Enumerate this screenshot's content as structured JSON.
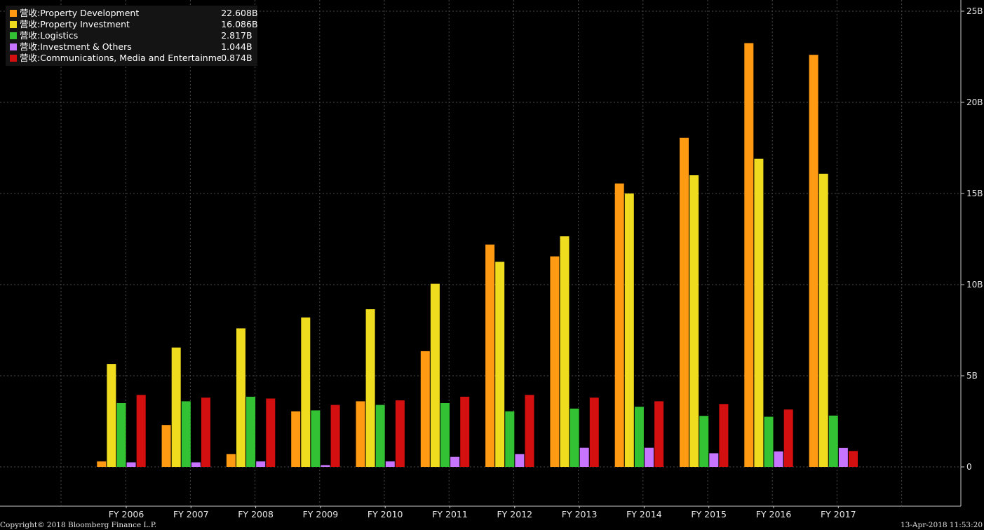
{
  "legend": [
    {
      "prefix": "营收:",
      "name": "Property Development",
      "value": "22.608B",
      "color": "#ff9a12"
    },
    {
      "prefix": "营收:",
      "name": "Property Investment",
      "value": "16.086B",
      "color": "#f0dc1e"
    },
    {
      "prefix": "营收:",
      "name": "Logistics",
      "value": "2.817B",
      "color": "#33c233"
    },
    {
      "prefix": "营收:",
      "name": "Investment & Others",
      "value": "1.044B",
      "color": "#c774ff"
    },
    {
      "prefix": "营收:",
      "name": "Communications, Media and Entertainment",
      "value": "0.874B",
      "color": "#d40f0f"
    }
  ],
  "footer": {
    "copyright": "Copyright© 2018 Bloomberg Finance L.P.",
    "timestamp": "13-Apr-2018 11:53:20"
  },
  "chart_data": {
    "type": "bar",
    "categories": [
      "FY 2006",
      "FY 2007",
      "FY 2008",
      "FY 2009",
      "FY 2010",
      "FY 2011",
      "FY 2012",
      "FY 2013",
      "FY 2014",
      "FY 2015",
      "FY 2016",
      "FY 2017"
    ],
    "series": [
      {
        "name": "营收: Property Development",
        "color": "#ff9a12",
        "values": [
          0.3,
          2.3,
          0.7,
          3.05,
          3.6,
          6.35,
          12.2,
          11.55,
          15.55,
          18.05,
          23.25,
          22.608
        ]
      },
      {
        "name": "营收: Property Investment",
        "color": "#f0dc1e",
        "values": [
          5.65,
          6.55,
          7.6,
          8.2,
          8.65,
          10.05,
          11.25,
          12.65,
          15.0,
          16.0,
          16.9,
          16.086
        ]
      },
      {
        "name": "营收: Logistics",
        "color": "#33c233",
        "values": [
          3.5,
          3.6,
          3.85,
          3.1,
          3.4,
          3.5,
          3.05,
          3.2,
          3.3,
          2.8,
          2.75,
          2.817
        ]
      },
      {
        "name": "营收: Investment & Others",
        "color": "#c774ff",
        "values": [
          0.25,
          0.25,
          0.3,
          0.1,
          0.3,
          0.55,
          0.7,
          1.05,
          1.05,
          0.75,
          0.85,
          1.044
        ]
      },
      {
        "name": "营收: Communications, Media and Entertainment",
        "color": "#d40f0f",
        "values": [
          3.95,
          3.8,
          3.75,
          3.4,
          3.65,
          3.85,
          3.95,
          3.8,
          3.6,
          3.45,
          3.15,
          0.874
        ]
      }
    ],
    "y_ticks": [
      "0",
      "5B",
      "10B",
      "15B",
      "20B",
      "25B"
    ],
    "ylim": [
      -2.15,
      25.5
    ],
    "y_axis_position": "right",
    "grid": true,
    "legend_position": "top-left",
    "background": "#000000"
  }
}
